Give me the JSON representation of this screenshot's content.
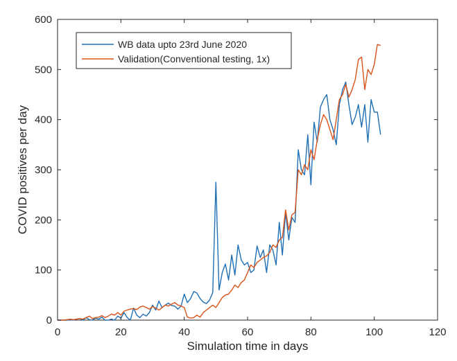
{
  "chart_data": {
    "type": "line",
    "xlabel": "Simulation time in days",
    "ylabel": "COVID positives per day",
    "xlim": [
      0,
      120
    ],
    "ylim": [
      0,
      600
    ],
    "xticks": [
      "0",
      "20",
      "40",
      "60",
      "80",
      "100",
      "120"
    ],
    "yticks": [
      "0",
      "100",
      "200",
      "300",
      "400",
      "500",
      "600"
    ],
    "grid": false,
    "legend_position": "top-left",
    "series": [
      {
        "name": "WB data upto 23rd June 2020",
        "color": "#1f6fb4",
        "x": [
          0,
          1,
          2,
          3,
          4,
          5,
          6,
          7,
          8,
          9,
          10,
          11,
          12,
          13,
          14,
          15,
          16,
          17,
          18,
          19,
          20,
          21,
          22,
          23,
          24,
          25,
          26,
          27,
          28,
          29,
          30,
          31,
          32,
          33,
          34,
          35,
          36,
          37,
          38,
          39,
          40,
          41,
          42,
          43,
          44,
          45,
          46,
          47,
          48,
          49,
          50,
          51,
          52,
          53,
          54,
          55,
          56,
          57,
          58,
          59,
          60,
          61,
          62,
          63,
          64,
          65,
          66,
          67,
          68,
          69,
          70,
          71,
          72,
          73,
          74,
          75,
          76,
          77,
          78,
          79,
          80,
          81,
          82,
          83,
          84,
          85,
          86,
          87,
          88,
          89,
          90,
          91,
          92,
          93,
          94,
          95,
          96,
          97,
          98,
          99,
          100,
          101,
          102
        ],
        "y": [
          0,
          0,
          0,
          0,
          1,
          0,
          2,
          3,
          0,
          5,
          1,
          0,
          4,
          2,
          6,
          0,
          0,
          2,
          0,
          8,
          4,
          15,
          5,
          0,
          24,
          10,
          5,
          12,
          8,
          15,
          30,
          20,
          38,
          25,
          30,
          34,
          29,
          28,
          22,
          28,
          52,
          35,
          43,
          57,
          54,
          43,
          36,
          33,
          40,
          55,
          275,
          60,
          95,
          112,
          80,
          130,
          90,
          150,
          120,
          110,
          115,
          95,
          100,
          148,
          125,
          140,
          95,
          150,
          140,
          110,
          195,
          130,
          215,
          160,
          205,
          195,
          340,
          300,
          290,
          370,
          270,
          395,
          355,
          425,
          440,
          450,
          400,
          380,
          350,
          430,
          460,
          475,
          430,
          390,
          405,
          430,
          385,
          430,
          355,
          440,
          415,
          415,
          370
        ]
      },
      {
        "name": "Validation(Conventional testing, 1x)",
        "color": "#d95319",
        "x": [
          0,
          1,
          2,
          3,
          4,
          5,
          6,
          7,
          8,
          9,
          10,
          11,
          12,
          13,
          14,
          15,
          16,
          17,
          18,
          19,
          20,
          21,
          22,
          23,
          24,
          25,
          26,
          27,
          28,
          29,
          30,
          31,
          32,
          33,
          34,
          35,
          36,
          37,
          38,
          39,
          40,
          41,
          42,
          43,
          44,
          45,
          46,
          47,
          48,
          49,
          50,
          51,
          52,
          53,
          54,
          55,
          56,
          57,
          58,
          59,
          60,
          61,
          62,
          63,
          64,
          65,
          66,
          67,
          68,
          69,
          70,
          71,
          72,
          73,
          74,
          75,
          76,
          77,
          78,
          79,
          80,
          81,
          82,
          83,
          84,
          85,
          86,
          87,
          88,
          89,
          90,
          91,
          92,
          93,
          94,
          95,
          96,
          97,
          98,
          99,
          100,
          101,
          102
        ],
        "y": [
          0,
          0,
          0,
          1,
          2,
          1,
          2,
          3,
          2,
          5,
          8,
          3,
          5,
          6,
          9,
          5,
          8,
          12,
          10,
          15,
          10,
          18,
          20,
          22,
          23,
          21,
          26,
          28,
          25,
          22,
          27,
          24,
          20,
          25,
          30,
          28,
          32,
          35,
          30,
          28,
          25,
          6,
          4,
          5,
          10,
          6,
          15,
          20,
          25,
          30,
          25,
          35,
          45,
          50,
          52,
          60,
          70,
          65,
          75,
          80,
          95,
          110,
          105,
          115,
          120,
          125,
          128,
          135,
          150,
          145,
          160,
          165,
          220,
          180,
          210,
          215,
          300,
          290,
          310,
          300,
          340,
          320,
          360,
          390,
          410,
          400,
          380,
          360,
          400,
          440,
          450,
          470,
          445,
          460,
          480,
          520,
          525,
          460,
          500,
          490,
          510,
          550,
          548
        ]
      }
    ]
  }
}
